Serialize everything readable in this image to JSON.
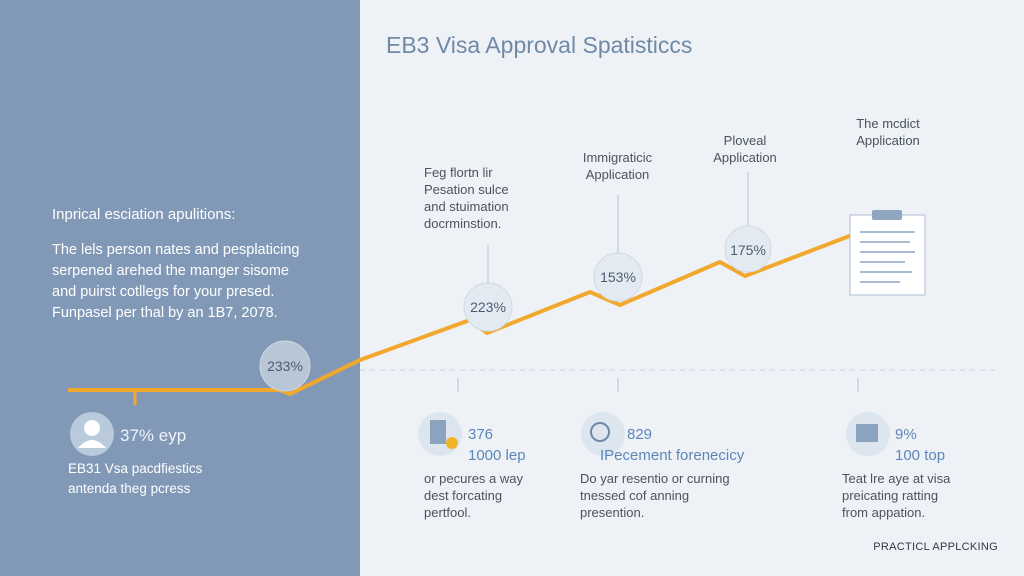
{
  "header": {
    "title": "EB3 Visa Approval Spatisticcs"
  },
  "left_panel": {
    "heading": "Inprical esciation apulitions:",
    "paragraph": [
      "The lels person nates and pesplaticing",
      "serpened arehed the manger sisome",
      "and puirst cotllegs for your presed."
    ],
    "note": "Funpasel per thal by an 1B7, 2078.",
    "stat": "37% eyp",
    "description": [
      "EB31 Vsa pacdfiestics",
      "antenda theg pcress"
    ]
  },
  "points": [
    "233%",
    "223%",
    "153%",
    "175%"
  ],
  "callouts": [
    [
      "Feg flortn lir",
      "Pesation sulce",
      "and stuimation",
      "docrminstion."
    ],
    [
      "Immigraticic",
      "Application"
    ],
    [
      "Ploveal",
      "Application"
    ],
    [
      "The mcdict",
      "Application"
    ]
  ],
  "cards": [
    {
      "value": "376",
      "sub": "1000 lep",
      "description": [
        "or pecures a way",
        "dest forcating",
        "pertfool."
      ]
    },
    {
      "value": "829",
      "sub": "IPecement forenecicy",
      "description": [
        "Do yar resentio or curning",
        "tnessed cof anning",
        "presention."
      ]
    },
    {
      "value": "9%",
      "sub": "100 top",
      "description": [
        "Teat lre aye at visa",
        "preicating ratting",
        "from appation."
      ]
    }
  ],
  "footer": "PRACTICL APPLCKING"
}
